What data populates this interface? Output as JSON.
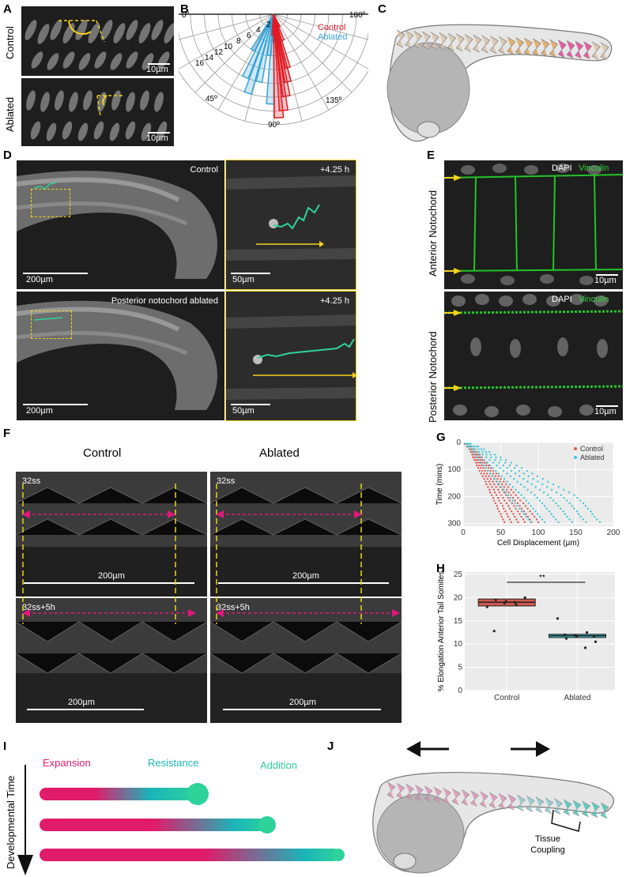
{
  "panels": {
    "A": {
      "letter": "A",
      "rows": [
        "Control",
        "Ablated"
      ],
      "scale": "10µm"
    },
    "B": {
      "letter": "B",
      "legend": [
        "Control",
        "Ablated"
      ],
      "angle_labels": [
        "0º",
        "180º",
        "45º",
        "90º",
        "135º"
      ],
      "radial_labels": [
        "2",
        "4",
        "6",
        "8",
        "10",
        "12",
        "14",
        "16"
      ],
      "colors": {
        "control": "#e01b24",
        "ablated": "#3aa3d6"
      }
    },
    "C": {
      "letter": "C"
    },
    "D": {
      "letter": "D",
      "top_label": "Control",
      "bottom_label": "Posterior notochord ablated",
      "time": "+4.25 h",
      "scale_large": "200µm",
      "scale_small": "50µm"
    },
    "E": {
      "letter": "E",
      "rows": [
        "Anterior Notochord",
        "Posterior Notochord"
      ],
      "stain_dapi": "DAPI",
      "stain_vinculin": "Vinculin",
      "scale": "10µm"
    },
    "F": {
      "letter": "F",
      "col_titles": [
        "Control",
        "Ablated"
      ],
      "time_top": "32ss",
      "time_bottom": "32ss+5h",
      "scale": "200µm"
    },
    "G": {
      "letter": "G"
    },
    "H": {
      "letter": "H",
      "significance": "**"
    },
    "I": {
      "letter": "I",
      "phases": [
        "Expansion",
        "Resistance",
        "Addition"
      ],
      "axis_label": "Developmental Time",
      "colors": {
        "expansion": "#e01b6a",
        "resistance": "#1ab5b9",
        "addition": "#2ed39a"
      }
    },
    "J": {
      "letter": "J",
      "label": "Tissue Coupling"
    }
  },
  "chart_data": [
    {
      "type": "scatter",
      "panel": "G",
      "xlabel": "Cell Displacement (µm)",
      "ylabel": "Time (mins)",
      "x_ticks": [
        "0",
        "50",
        "100",
        "150",
        "200"
      ],
      "y_ticks": [
        "0",
        "100",
        "200",
        "300"
      ],
      "xlim": [
        0,
        200
      ],
      "ylim": [
        0,
        310
      ],
      "y_inverted": true,
      "legend_position": "top-right",
      "series": [
        {
          "name": "Control",
          "color": "#e0574f",
          "points_by_time": [
            [
              5,
              2,
              5
            ],
            [
              15,
              5,
              10
            ],
            [
              25,
              8,
              14
            ],
            [
              35,
              10,
              18
            ],
            [
              45,
              12,
              22
            ],
            [
              55,
              13,
              25
            ],
            [
              65,
              15,
              28
            ],
            [
              75,
              17,
              31
            ],
            [
              85,
              18,
              34
            ],
            [
              95,
              20,
              37
            ],
            [
              105,
              22,
              40
            ],
            [
              115,
              24,
              44
            ],
            [
              125,
              26,
              47
            ],
            [
              135,
              28,
              50
            ],
            [
              145,
              30,
              54
            ],
            [
              155,
              31,
              57
            ],
            [
              165,
              33,
              60
            ],
            [
              175,
              35,
              64
            ],
            [
              185,
              36,
              67
            ],
            [
              195,
              38,
              70
            ],
            [
              205,
              40,
              73
            ],
            [
              215,
              41,
              76
            ],
            [
              225,
              43,
              80
            ],
            [
              235,
              45,
              83
            ],
            [
              245,
              46,
              86
            ],
            [
              255,
              48,
              89
            ],
            [
              265,
              50,
              92
            ],
            [
              275,
              51,
              95
            ],
            [
              285,
              53,
              98
            ],
            [
              295,
              55,
              100
            ]
          ]
        },
        {
          "name": "Ablated",
          "color": "#3fc9d6",
          "points_by_time": [
            [
              5,
              3,
              10
            ],
            [
              15,
              6,
              20
            ],
            [
              25,
              9,
              28
            ],
            [
              35,
              12,
              35
            ],
            [
              45,
              15,
              42
            ],
            [
              55,
              18,
              50
            ],
            [
              65,
              21,
              57
            ],
            [
              75,
              24,
              64
            ],
            [
              85,
              27,
              71
            ],
            [
              95,
              30,
              78
            ],
            [
              105,
              33,
              85
            ],
            [
              115,
              36,
              92
            ],
            [
              125,
              39,
              99
            ],
            [
              135,
              42,
              106
            ],
            [
              145,
              45,
              113
            ],
            [
              155,
              48,
              120
            ],
            [
              165,
              51,
              127
            ],
            [
              175,
              54,
              134
            ],
            [
              185,
              57,
              141
            ],
            [
              195,
              60,
              148
            ],
            [
              205,
              63,
              152
            ],
            [
              215,
              66,
              156
            ],
            [
              225,
              69,
              160
            ],
            [
              235,
              72,
              163
            ],
            [
              245,
              75,
              166
            ],
            [
              255,
              78,
              170
            ],
            [
              265,
              81,
              172
            ],
            [
              275,
              84,
              175
            ],
            [
              285,
              87,
              178
            ],
            [
              295,
              90,
              182
            ]
          ]
        }
      ]
    },
    {
      "type": "bar",
      "panel": "H",
      "ylabel": "% Elongation Anterior Tail Somites",
      "categories": [
        "Control",
        "Ablated"
      ],
      "y_ticks": [
        "0",
        "5",
        "10",
        "15",
        "20",
        "25"
      ],
      "ylim": [
        0,
        25.5
      ],
      "series": [
        {
          "name": "Control",
          "color": "#cf5a4f",
          "box": [
            18.2,
            19.7
          ],
          "median": 19.0,
          "points": [
            18.0,
            18.5,
            19.2,
            19.5,
            20.0,
            19.0,
            18.8,
            12.8
          ]
        },
        {
          "name": "Ablated",
          "color": "#33c4cf",
          "box": [
            11.4,
            12.1
          ],
          "median": 11.8,
          "points": [
            15.5,
            12.5,
            11.7,
            11.2,
            10.5,
            9.2,
            11.9,
            12.0,
            11.6
          ]
        }
      ]
    }
  ]
}
